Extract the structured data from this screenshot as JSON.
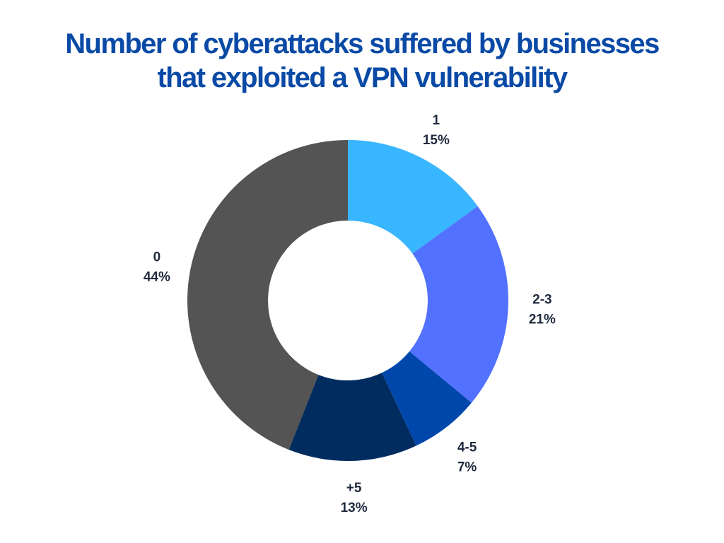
{
  "title_lines": [
    "Number of cyberattacks suffered by businesses",
    "that exploited a VPN vulnerability"
  ],
  "chart_data": {
    "type": "pie",
    "variant": "donut",
    "title": "Number of cyberattacks suffered by businesses that exploited a VPN vulnerability",
    "categories": [
      "1",
      "2-3",
      "4-5",
      "+5",
      "0"
    ],
    "values": [
      15,
      21,
      7,
      13,
      44
    ],
    "value_labels": [
      "15%",
      "21%",
      "7%",
      "13%",
      "44%"
    ],
    "unit": "%",
    "colors": [
      "#38b6ff",
      "#5271ff",
      "#0047ab",
      "#002c5f",
      "#545454"
    ],
    "start": "12 o'clock",
    "direction": "clockwise",
    "legend": "none"
  }
}
